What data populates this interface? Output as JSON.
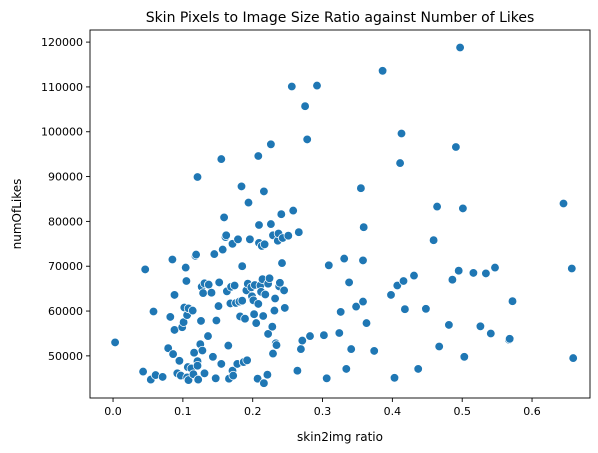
{
  "chart_data": {
    "type": "scatter",
    "title": "Skin Pixels to Image Size Ratio against Number of Likes",
    "xlabel": "skin2img ratio",
    "ylabel": "numOfLikes",
    "xlim": [
      -0.033,
      0.683
    ],
    "ylim": [
      40600,
      122700
    ],
    "xticks": [
      0.0,
      0.1,
      0.2,
      0.3,
      0.4,
      0.5,
      0.6
    ],
    "xtick_labels": [
      "0.0",
      "0.1",
      "0.2",
      "0.3",
      "0.4",
      "0.5",
      "0.6"
    ],
    "yticks": [
      50000,
      60000,
      70000,
      80000,
      90000,
      100000,
      110000,
      120000
    ],
    "ytick_labels": [
      "50000",
      "60000",
      "70000",
      "80000",
      "90000",
      "100000",
      "110000",
      "120000"
    ],
    "grid": false,
    "color": "#1f77b4",
    "points": [
      [
        0.003,
        53000
      ],
      [
        0.043,
        46500
      ],
      [
        0.046,
        69300
      ],
      [
        0.054,
        44700
      ],
      [
        0.058,
        59900
      ],
      [
        0.061,
        45700
      ],
      [
        0.071,
        45300
      ],
      [
        0.079,
        51700
      ],
      [
        0.082,
        58700
      ],
      [
        0.085,
        71500
      ],
      [
        0.086,
        50400
      ],
      [
        0.088,
        63600
      ],
      [
        0.088,
        55800
      ],
      [
        0.092,
        46100
      ],
      [
        0.095,
        48900
      ],
      [
        0.097,
        45600
      ],
      [
        0.099,
        56400
      ],
      [
        0.101,
        57500
      ],
      [
        0.102,
        60800
      ],
      [
        0.104,
        69700
      ],
      [
        0.105,
        66700
      ],
      [
        0.106,
        59100
      ],
      [
        0.106,
        45200
      ],
      [
        0.107,
        47500
      ],
      [
        0.108,
        44600
      ],
      [
        0.108,
        60600
      ],
      [
        0.112,
        47200
      ],
      [
        0.114,
        60100
      ],
      [
        0.115,
        45900
      ],
      [
        0.116,
        50700
      ],
      [
        0.118,
        72300
      ],
      [
        0.119,
        72600
      ],
      [
        0.121,
        89900
      ],
      [
        0.121,
        48800
      ],
      [
        0.121,
        47800
      ],
      [
        0.122,
        44700
      ],
      [
        0.125,
        52600
      ],
      [
        0.126,
        57800
      ],
      [
        0.127,
        65400
      ],
      [
        0.128,
        51200
      ],
      [
        0.129,
        64000
      ],
      [
        0.131,
        66200
      ],
      [
        0.131,
        46100
      ],
      [
        0.136,
        54400
      ],
      [
        0.137,
        65900
      ],
      [
        0.141,
        64100
      ],
      [
        0.143,
        49800
      ],
      [
        0.145,
        72700
      ],
      [
        0.147,
        45000
      ],
      [
        0.148,
        57900
      ],
      [
        0.151,
        61100
      ],
      [
        0.152,
        66400
      ],
      [
        0.155,
        48200
      ],
      [
        0.155,
        93900
      ],
      [
        0.157,
        73700
      ],
      [
        0.159,
        80900
      ],
      [
        0.161,
        76500
      ],
      [
        0.162,
        76900
      ],
      [
        0.163,
        64400
      ],
      [
        0.165,
        52300
      ],
      [
        0.166,
        44900
      ],
      [
        0.168,
        61700
      ],
      [
        0.169,
        65400
      ],
      [
        0.171,
        75000
      ],
      [
        0.171,
        46700
      ],
      [
        0.172,
        45600
      ],
      [
        0.174,
        65700
      ],
      [
        0.176,
        61800
      ],
      [
        0.178,
        48200
      ],
      [
        0.179,
        76000
      ],
      [
        0.181,
        62100
      ],
      [
        0.182,
        58800
      ],
      [
        0.184,
        87800
      ],
      [
        0.185,
        70000
      ],
      [
        0.185,
        62300
      ],
      [
        0.187,
        48600
      ],
      [
        0.189,
        58300
      ],
      [
        0.191,
        64600
      ],
      [
        0.192,
        49000
      ],
      [
        0.193,
        66100
      ],
      [
        0.194,
        84200
      ],
      [
        0.196,
        76000
      ],
      [
        0.198,
        65300
      ],
      [
        0.199,
        63300
      ],
      [
        0.201,
        62400
      ],
      [
        0.202,
        59300
      ],
      [
        0.203,
        65800
      ],
      [
        0.205,
        57300
      ],
      [
        0.207,
        44900
      ],
      [
        0.208,
        94600
      ],
      [
        0.208,
        61600
      ],
      [
        0.209,
        75200
      ],
      [
        0.209,
        79200
      ],
      [
        0.211,
        65700
      ],
      [
        0.212,
        64300
      ],
      [
        0.213,
        74500
      ],
      [
        0.214,
        67100
      ],
      [
        0.215,
        58900
      ],
      [
        0.216,
        43900
      ],
      [
        0.216,
        86700
      ],
      [
        0.217,
        74900
      ],
      [
        0.218,
        63700
      ],
      [
        0.221,
        45800
      ],
      [
        0.222,
        54900
      ],
      [
        0.222,
        66100
      ],
      [
        0.224,
        67300
      ],
      [
        0.226,
        97200
      ],
      [
        0.226,
        79400
      ],
      [
        0.228,
        56500
      ],
      [
        0.229,
        50500
      ],
      [
        0.229,
        76900
      ],
      [
        0.231,
        60100
      ],
      [
        0.232,
        62800
      ],
      [
        0.233,
        52800
      ],
      [
        0.234,
        52400
      ],
      [
        0.236,
        75700
      ],
      [
        0.237,
        77300
      ],
      [
        0.238,
        65500
      ],
      [
        0.239,
        66300
      ],
      [
        0.241,
        81600
      ],
      [
        0.242,
        70700
      ],
      [
        0.243,
        76300
      ],
      [
        0.245,
        64600
      ],
      [
        0.246,
        60700
      ],
      [
        0.251,
        76800
      ],
      [
        0.256,
        110100
      ],
      [
        0.258,
        82400
      ],
      [
        0.264,
        46700
      ],
      [
        0.266,
        77600
      ],
      [
        0.269,
        51500
      ],
      [
        0.271,
        53400
      ],
      [
        0.275,
        105700
      ],
      [
        0.278,
        98300
      ],
      [
        0.282,
        54400
      ],
      [
        0.292,
        110300
      ],
      [
        0.302,
        54600
      ],
      [
        0.306,
        45000
      ],
      [
        0.309,
        70200
      ],
      [
        0.324,
        55100
      ],
      [
        0.326,
        59800
      ],
      [
        0.331,
        71700
      ],
      [
        0.334,
        47100
      ],
      [
        0.338,
        66400
      ],
      [
        0.341,
        51500
      ],
      [
        0.348,
        61000
      ],
      [
        0.355,
        87400
      ],
      [
        0.358,
        71300
      ],
      [
        0.358,
        62100
      ],
      [
        0.359,
        78700
      ],
      [
        0.363,
        57300
      ],
      [
        0.374,
        51100
      ],
      [
        0.386,
        113600
      ],
      [
        0.398,
        63600
      ],
      [
        0.403,
        45100
      ],
      [
        0.407,
        65700
      ],
      [
        0.411,
        93000
      ],
      [
        0.413,
        99600
      ],
      [
        0.416,
        66700
      ],
      [
        0.418,
        60400
      ],
      [
        0.431,
        67900
      ],
      [
        0.437,
        47100
      ],
      [
        0.448,
        60500
      ],
      [
        0.459,
        75800
      ],
      [
        0.464,
        83300
      ],
      [
        0.467,
        52100
      ],
      [
        0.481,
        56900
      ],
      [
        0.486,
        67000
      ],
      [
        0.491,
        96600
      ],
      [
        0.495,
        69000
      ],
      [
        0.497,
        118800
      ],
      [
        0.501,
        82900
      ],
      [
        0.503,
        49800
      ],
      [
        0.516,
        68500
      ],
      [
        0.526,
        56600
      ],
      [
        0.534,
        68400
      ],
      [
        0.541,
        55000
      ],
      [
        0.547,
        69700
      ],
      [
        0.567,
        53600
      ],
      [
        0.568,
        53800
      ],
      [
        0.572,
        62200
      ],
      [
        0.645,
        84000
      ],
      [
        0.657,
        69500
      ],
      [
        0.659,
        49500
      ]
    ]
  }
}
